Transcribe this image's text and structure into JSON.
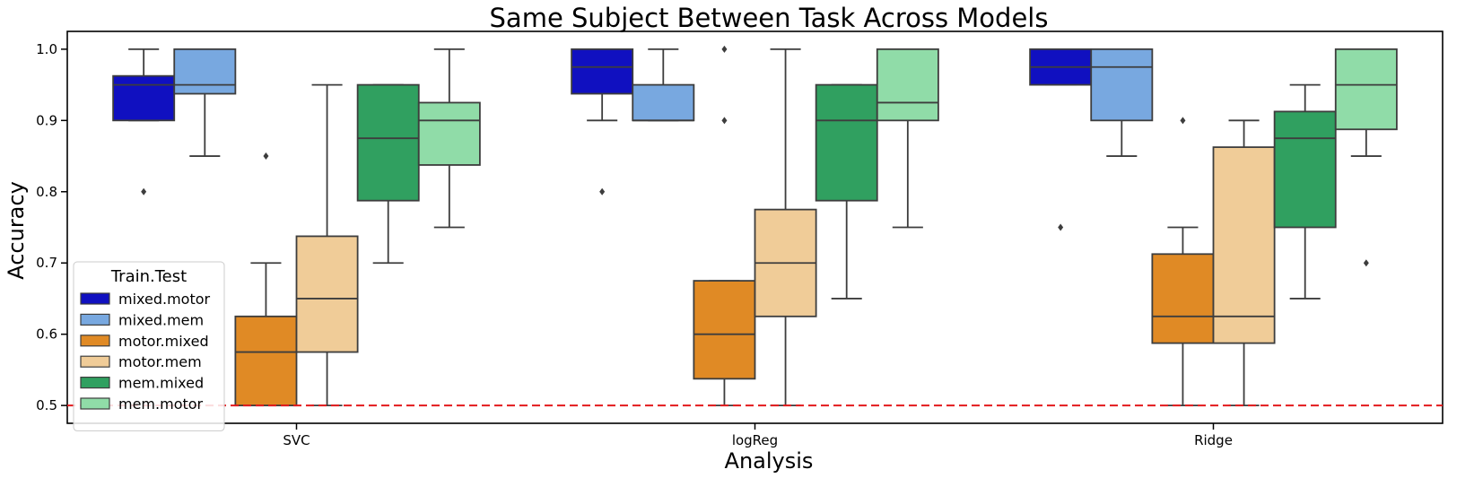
{
  "chart_data": {
    "type": "box",
    "title": "Same Subject Between Task Across Models",
    "xlabel": "Analysis",
    "ylabel": "Accuracy",
    "categories": [
      "SVC",
      "logReg",
      "Ridge"
    ],
    "ylim": [
      0.475,
      1.025
    ],
    "yticks": [
      "0.5",
      "0.6",
      "0.7",
      "0.8",
      "0.9",
      "1.0"
    ],
    "reference_line": {
      "y": 0.5,
      "color": "#e31a1c",
      "style": "dashed"
    },
    "legend": {
      "title": "Train.Test",
      "position": "lower-left"
    },
    "series": [
      {
        "name": "mixed.motor",
        "color": "#1010c0",
        "boxes": [
          {
            "whisker_low": 0.9,
            "q1": 0.9,
            "median": 0.95,
            "q3": 0.9625,
            "whisker_high": 1.0,
            "outliers": [
              0.8
            ]
          },
          {
            "whisker_low": 0.9,
            "q1": 0.9375,
            "median": 0.975,
            "q3": 1.0,
            "whisker_high": 1.0,
            "outliers": [
              0.8
            ]
          },
          {
            "whisker_low": 0.95,
            "q1": 0.95,
            "median": 0.975,
            "q3": 1.0,
            "whisker_high": 1.0,
            "outliers": [
              0.75
            ]
          }
        ]
      },
      {
        "name": "mixed.mem",
        "color": "#78a8e0",
        "boxes": [
          {
            "whisker_low": 0.85,
            "q1": 0.9375,
            "median": 0.95,
            "q3": 1.0,
            "whisker_high": 1.0,
            "outliers": []
          },
          {
            "whisker_low": 0.9,
            "q1": 0.9,
            "median": 0.9,
            "q3": 0.95,
            "whisker_high": 1.0,
            "outliers": []
          },
          {
            "whisker_low": 0.85,
            "q1": 0.9,
            "median": 0.975,
            "q3": 1.0,
            "whisker_high": 1.0,
            "outliers": []
          }
        ]
      },
      {
        "name": "motor.mixed",
        "color": "#e08a25",
        "boxes": [
          {
            "whisker_low": 0.5,
            "q1": 0.5,
            "median": 0.575,
            "q3": 0.625,
            "whisker_high": 0.7,
            "outliers": [
              0.85
            ]
          },
          {
            "whisker_low": 0.5,
            "q1": 0.5375,
            "median": 0.6,
            "q3": 0.675,
            "whisker_high": 0.675,
            "outliers": [
              0.9,
              1.0
            ]
          },
          {
            "whisker_low": 0.5,
            "q1": 0.5875,
            "median": 0.625,
            "q3": 0.7125,
            "whisker_high": 0.75,
            "outliers": [
              0.9
            ]
          }
        ]
      },
      {
        "name": "motor.mem",
        "color": "#f0cc98",
        "boxes": [
          {
            "whisker_low": 0.5,
            "q1": 0.575,
            "median": 0.65,
            "q3": 0.7375,
            "whisker_high": 0.95,
            "outliers": []
          },
          {
            "whisker_low": 0.5,
            "q1": 0.625,
            "median": 0.7,
            "q3": 0.775,
            "whisker_high": 1.0,
            "outliers": []
          },
          {
            "whisker_low": 0.5,
            "q1": 0.5875,
            "median": 0.625,
            "q3": 0.8625,
            "whisker_high": 0.9,
            "outliers": []
          }
        ]
      },
      {
        "name": "mem.mixed",
        "color": "#30a060",
        "boxes": [
          {
            "whisker_low": 0.7,
            "q1": 0.7875,
            "median": 0.875,
            "q3": 0.95,
            "whisker_high": 0.95,
            "outliers": []
          },
          {
            "whisker_low": 0.65,
            "q1": 0.7875,
            "median": 0.9,
            "q3": 0.95,
            "whisker_high": 0.95,
            "outliers": []
          },
          {
            "whisker_low": 0.65,
            "q1": 0.75,
            "median": 0.875,
            "q3": 0.9125,
            "whisker_high": 0.95,
            "outliers": []
          }
        ]
      },
      {
        "name": "mem.motor",
        "color": "#90dca8",
        "boxes": [
          {
            "whisker_low": 0.75,
            "q1": 0.8375,
            "median": 0.9,
            "q3": 0.925,
            "whisker_high": 1.0,
            "outliers": []
          },
          {
            "whisker_low": 0.75,
            "q1": 0.9,
            "median": 0.925,
            "q3": 1.0,
            "whisker_high": 1.0,
            "outliers": []
          },
          {
            "whisker_low": 0.85,
            "q1": 0.8875,
            "median": 0.95,
            "q3": 1.0,
            "whisker_high": 1.0,
            "outliers": [
              0.7
            ]
          }
        ]
      }
    ]
  }
}
